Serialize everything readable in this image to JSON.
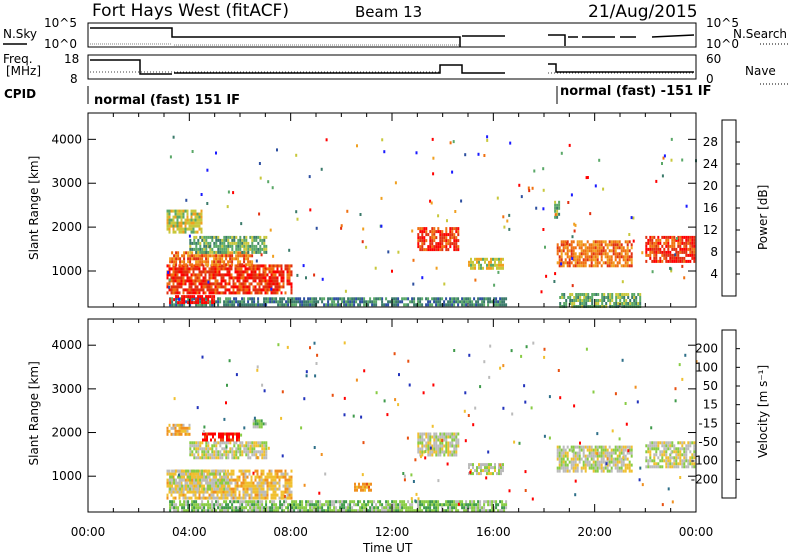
{
  "header": {
    "title": "Fort Hays West (fitACF)",
    "beam": "Beam 13",
    "date": "21/Aug/2015"
  },
  "noise_panel": {
    "left_label": "N.Sky",
    "left_ticks": [
      "10^5",
      "10^0"
    ],
    "right_ticks": [
      "10^5",
      "10^0"
    ],
    "right_label": "N.Search"
  },
  "freq_panel": {
    "left_label_1": "Freq.",
    "left_label_2": "[MHz]",
    "left_ticks": [
      "18",
      "8"
    ],
    "right_ticks": [
      "60",
      "0"
    ],
    "right_label": "Nave"
  },
  "cpid": {
    "label": "CPID",
    "mode1": "normal (fast) 151 IF",
    "mode2": "normal (fast) -151 IF"
  },
  "power_colorbar": {
    "label": "Power [dB]",
    "ticks": [
      "28",
      "24",
      "20",
      "16",
      "12",
      "8",
      "4"
    ],
    "colors": [
      "#1a1aff",
      "#2d4fa0",
      "#3a7a6a",
      "#5aa868",
      "#c8c83c",
      "#f0a020",
      "#f07010",
      "#e23010",
      "#ff0000"
    ]
  },
  "velocity_colorbar": {
    "label": "Velocity [m s⁻¹]",
    "ticks": [
      "200",
      "100",
      "50",
      "15",
      "-15",
      "-50",
      "-100",
      "-200"
    ],
    "colors": [
      "#2233bb",
      "#2e6f88",
      "#3e9a4a",
      "#88cc44",
      "#bbbbbb",
      "#f0c030",
      "#f09020",
      "#e85010",
      "#ff0000"
    ]
  },
  "chart_data": [
    {
      "type": "heatmap",
      "name": "power",
      "xlabel": "Time UT",
      "ylabel": "Slant Range [km]",
      "xticks": [
        "00:00",
        "04:00",
        "08:00",
        "12:00",
        "16:00",
        "20:00",
        "00:00"
      ],
      "yticks": [
        1000,
        2000,
        3000,
        4000
      ],
      "xlim_hours": [
        0,
        24
      ],
      "ylim_km": [
        180,
        4600
      ],
      "patches": [
        {
          "t0": 3.1,
          "t1": 8.0,
          "r0": 500,
          "r1": 1150,
          "c": 7
        },
        {
          "t0": 3.2,
          "t1": 6.5,
          "r0": 1150,
          "r1": 1450,
          "c": 6
        },
        {
          "t0": 4.0,
          "t1": 7.0,
          "r0": 1400,
          "r1": 1800,
          "c": 3
        },
        {
          "t0": 3.1,
          "t1": 4.5,
          "r0": 1900,
          "r1": 2400,
          "c": 4
        },
        {
          "t0": 3.2,
          "t1": 16.5,
          "r0": 200,
          "r1": 400,
          "c": 2
        },
        {
          "t0": 3.2,
          "t1": 5.0,
          "r0": 250,
          "r1": 450,
          "c": 8
        },
        {
          "t0": 13.0,
          "t1": 14.6,
          "r0": 1500,
          "r1": 2000,
          "c": 7
        },
        {
          "t0": 15.0,
          "t1": 16.4,
          "r0": 1050,
          "r1": 1300,
          "c": 4
        },
        {
          "t0": 18.4,
          "t1": 18.6,
          "r0": 2200,
          "r1": 2600,
          "c": 3
        },
        {
          "t0": 18.5,
          "t1": 21.5,
          "r0": 1100,
          "r1": 1700,
          "c": 6
        },
        {
          "t0": 22.0,
          "t1": 23.9,
          "r0": 1250,
          "r1": 1800,
          "c": 7
        },
        {
          "t0": 18.6,
          "t1": 21.8,
          "r0": 200,
          "r1": 500,
          "c": 3
        }
      ]
    },
    {
      "type": "heatmap",
      "name": "velocity",
      "xlabel": "Time UT",
      "ylabel": "Slant Range [km]",
      "xticks": [
        "00:00",
        "04:00",
        "08:00",
        "12:00",
        "16:00",
        "20:00",
        "00:00"
      ],
      "yticks": [
        1000,
        2000,
        3000,
        4000
      ],
      "xlim_hours": [
        0,
        24
      ],
      "ylim_km": [
        180,
        4600
      ],
      "patches": [
        {
          "t0": 3.1,
          "t1": 8.0,
          "r0": 500,
          "r1": 1150,
          "c": 5
        },
        {
          "t0": 3.2,
          "t1": 5.5,
          "r0": 700,
          "r1": 1150,
          "c": 4
        },
        {
          "t0": 4.0,
          "t1": 7.0,
          "r0": 1400,
          "r1": 1800,
          "c": 4
        },
        {
          "t0": 4.5,
          "t1": 6.0,
          "r0": 1800,
          "r1": 2000,
          "c": 8
        },
        {
          "t0": 3.1,
          "t1": 4.0,
          "r0": 1950,
          "r1": 2200,
          "c": 5
        },
        {
          "t0": 6.5,
          "t1": 7.0,
          "r0": 2100,
          "r1": 2300,
          "c": 3
        },
        {
          "t0": 3.2,
          "t1": 16.5,
          "r0": 200,
          "r1": 450,
          "c": 3
        },
        {
          "t0": 13.0,
          "t1": 14.6,
          "r0": 1500,
          "r1": 2000,
          "c": 4
        },
        {
          "t0": 15.0,
          "t1": 16.4,
          "r0": 1050,
          "r1": 1300,
          "c": 4
        },
        {
          "t0": 18.5,
          "t1": 21.5,
          "r0": 1100,
          "r1": 1700,
          "c": 4
        },
        {
          "t0": 22.0,
          "t1": 23.9,
          "r0": 1250,
          "r1": 1800,
          "c": 4
        },
        {
          "t0": 10.5,
          "t1": 11.2,
          "r0": 700,
          "r1": 850,
          "c": 6
        }
      ]
    }
  ]
}
